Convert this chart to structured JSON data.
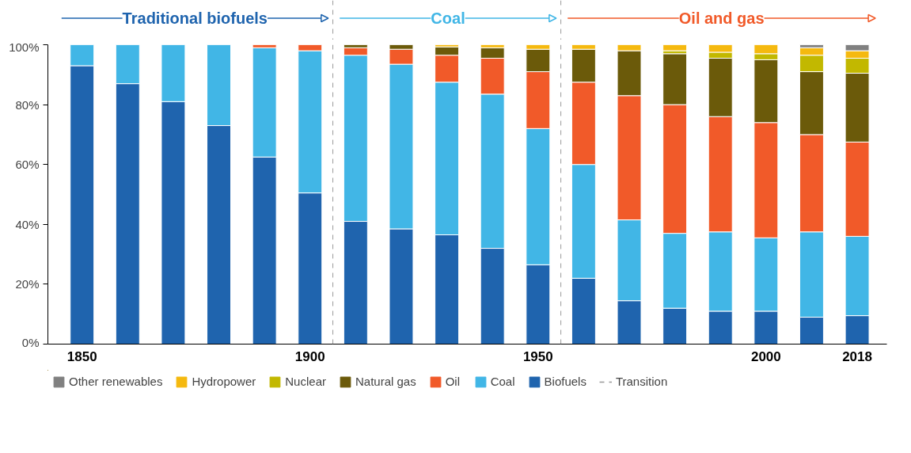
{
  "chart_data": {
    "type": "bar",
    "stacked": true,
    "categories": [
      "1850",
      null,
      null,
      null,
      null,
      "1900",
      null,
      null,
      null,
      null,
      "1950",
      null,
      null,
      null,
      null,
      "2000",
      null,
      "2018"
    ],
    "series": [
      {
        "name": "Biofuels",
        "color": "#1f64ae",
        "values": [
          93,
          87,
          81,
          73,
          62.5,
          50.5,
          41,
          38.5,
          36.5,
          32,
          26.5,
          22,
          14.5,
          12,
          11,
          11,
          9,
          9.5
        ]
      },
      {
        "name": "Coal",
        "color": "#41b6e6",
        "values": [
          7,
          13,
          19,
          27,
          36.5,
          47.5,
          55.5,
          55,
          51,
          51.5,
          45.5,
          38,
          27,
          25,
          26.5,
          24.5,
          28.5,
          26.5
        ]
      },
      {
        "name": "Oil",
        "color": "#f15a29",
        "values": [
          0,
          0,
          0,
          0,
          1,
          2,
          2.5,
          5,
          9,
          12,
          19,
          27.5,
          41.5,
          43,
          38.5,
          38.5,
          32.5,
          31.5
        ]
      },
      {
        "name": "Natural gas",
        "color": "#6b5a0a",
        "values": [
          0,
          0,
          0,
          0,
          0,
          0,
          1,
          1.5,
          2.8,
          3.5,
          7.5,
          11,
          15,
          17,
          19.5,
          21,
          21,
          23
        ]
      },
      {
        "name": "Nuclear",
        "color": "#c2b800",
        "values": [
          0,
          0,
          0,
          0,
          0,
          0,
          0,
          0,
          0,
          0,
          0,
          0,
          0,
          1,
          2,
          2,
          5.5,
          5
        ]
      },
      {
        "name": "Hydropower",
        "color": "#f5b90f",
        "values": [
          0,
          0,
          0,
          0,
          0,
          0,
          0,
          0,
          0.7,
          1,
          1.5,
          1.5,
          2,
          2,
          2.5,
          3,
          2.5,
          2.5
        ]
      },
      {
        "name": "Other renewables",
        "color": "#808080",
        "values": [
          0,
          0,
          0,
          0,
          0,
          0,
          0,
          0,
          0,
          0,
          0,
          0,
          0,
          0,
          0,
          0,
          1,
          2
        ]
      }
    ],
    "ylim": [
      0,
      100
    ],
    "yticks": [
      {
        "value": 0,
        "label": "0%"
      },
      {
        "value": 20,
        "label": "20%"
      },
      {
        "value": 40,
        "label": "40%"
      },
      {
        "value": 60,
        "label": "60%"
      },
      {
        "value": 80,
        "label": "80%"
      },
      {
        "value": 100,
        "label": "100%"
      }
    ],
    "annotations": [
      "Traditional biofuels",
      "Coal",
      "Oil and gas",
      "Transition"
    ],
    "legend": "bottom",
    "grid": false
  }
}
